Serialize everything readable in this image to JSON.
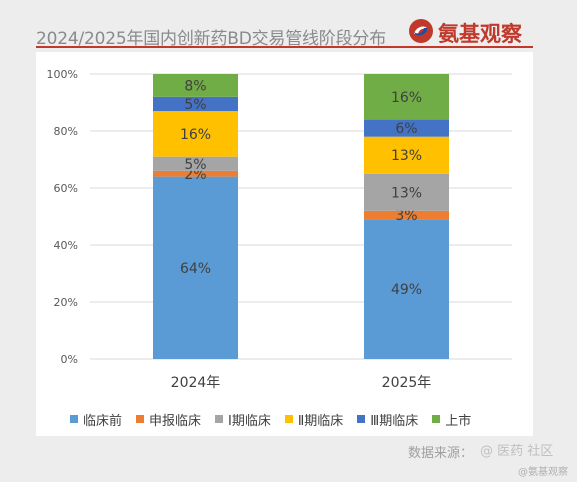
{
  "header": {
    "title": "2024/2025年国内创新药BD交易管线阶段分布",
    "logo_text": "氨基观察",
    "logo_icon": "swirl-logo-icon",
    "accent_color": "#c0392b"
  },
  "footer": {
    "source": "数据来源：",
    "watermark": "@ 医药 社区",
    "watermark_small": "@氨基观察"
  },
  "chart_data": {
    "type": "bar",
    "stacked": true,
    "percent": true,
    "categories": [
      "2024年",
      "2025年"
    ],
    "ylim": [
      0,
      100
    ],
    "yticks": [
      "0%",
      "20%",
      "40%",
      "60%",
      "80%",
      "100%"
    ],
    "grid": true,
    "legend_position": "bottom",
    "series": [
      {
        "name": "临床前",
        "color": "#5b9bd5",
        "values": [
          64,
          49
        ],
        "labels": [
          "64%",
          "49%"
        ]
      },
      {
        "name": "申报临床",
        "color": "#ed7d31",
        "values": [
          2,
          3
        ],
        "labels": [
          "2%",
          "3%"
        ]
      },
      {
        "name": "Ⅰ期临床",
        "color": "#a5a5a5",
        "values": [
          5,
          13
        ],
        "labels": [
          "5%",
          "13%"
        ]
      },
      {
        "name": "Ⅱ期临床",
        "color": "#ffc000",
        "values": [
          16,
          13
        ],
        "labels": [
          "16%",
          "13%"
        ]
      },
      {
        "name": "Ⅲ期临床",
        "color": "#4472c4",
        "values": [
          5,
          6
        ],
        "labels": [
          "5%",
          "6%"
        ]
      },
      {
        "name": "上市",
        "color": "#70ad47",
        "values": [
          8,
          16
        ],
        "labels": [
          "8%",
          "16%"
        ]
      }
    ]
  }
}
